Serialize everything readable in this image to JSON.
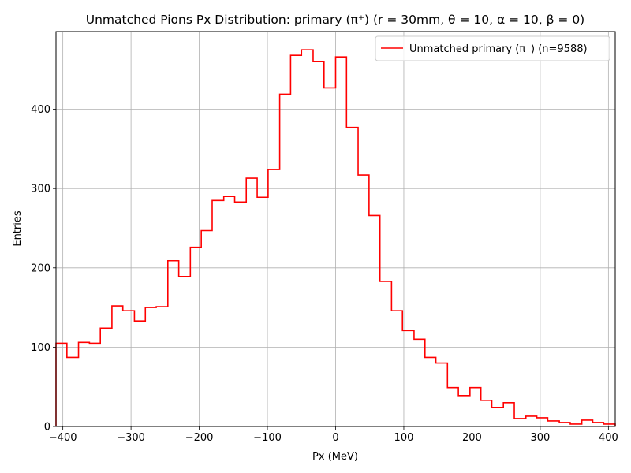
{
  "chart_data": {
    "type": "histogram",
    "title": "Unmatched Pions Px Distribution: primary (π⁺) (r = 30mm, θ = 10, α = 10, β = 0)",
    "xlabel": "Px (MeV)",
    "ylabel": "Entries",
    "xlim": [
      -410,
      410
    ],
    "ylim": [
      0,
      498
    ],
    "xticks": [
      -400,
      -300,
      -200,
      -100,
      0,
      100,
      200,
      300,
      400
    ],
    "xtick_labels": [
      "−400",
      "−300",
      "−200",
      "−100",
      "0",
      "100",
      "200",
      "300",
      "400"
    ],
    "yticks": [
      0,
      100,
      200,
      300,
      400
    ],
    "ytick_labels": [
      "0",
      "100",
      "200",
      "300",
      "400"
    ],
    "grid": true,
    "legend_position": "top-right",
    "series": [
      {
        "name": "Unmatched primary (π⁺) (n=9588)",
        "color": "#ff0000",
        "bin_edges": [
          -410,
          -394,
          -377,
          -361,
          -345,
          -328,
          -312,
          -295,
          -279,
          -263,
          -246,
          -230,
          -213,
          -197,
          -181,
          -164,
          -148,
          -131,
          -115,
          -99,
          -82,
          -66,
          -50,
          -33,
          -17,
          0,
          16,
          33,
          49,
          65,
          82,
          98,
          115,
          131,
          147,
          164,
          180,
          197,
          213,
          229,
          246,
          262,
          279,
          295,
          311,
          328,
          344,
          361,
          377,
          393,
          410
        ],
        "counts": [
          105,
          87,
          106,
          105,
          124,
          152,
          146,
          133,
          150,
          151,
          209,
          189,
          226,
          247,
          285,
          290,
          283,
          313,
          289,
          324,
          419,
          468,
          475,
          460,
          427,
          466,
          377,
          317,
          266,
          183,
          146,
          121,
          110,
          87,
          80,
          49,
          39,
          49,
          33,
          24,
          30,
          10,
          13,
          11,
          7,
          5,
          3,
          8,
          5,
          3
        ]
      }
    ]
  }
}
